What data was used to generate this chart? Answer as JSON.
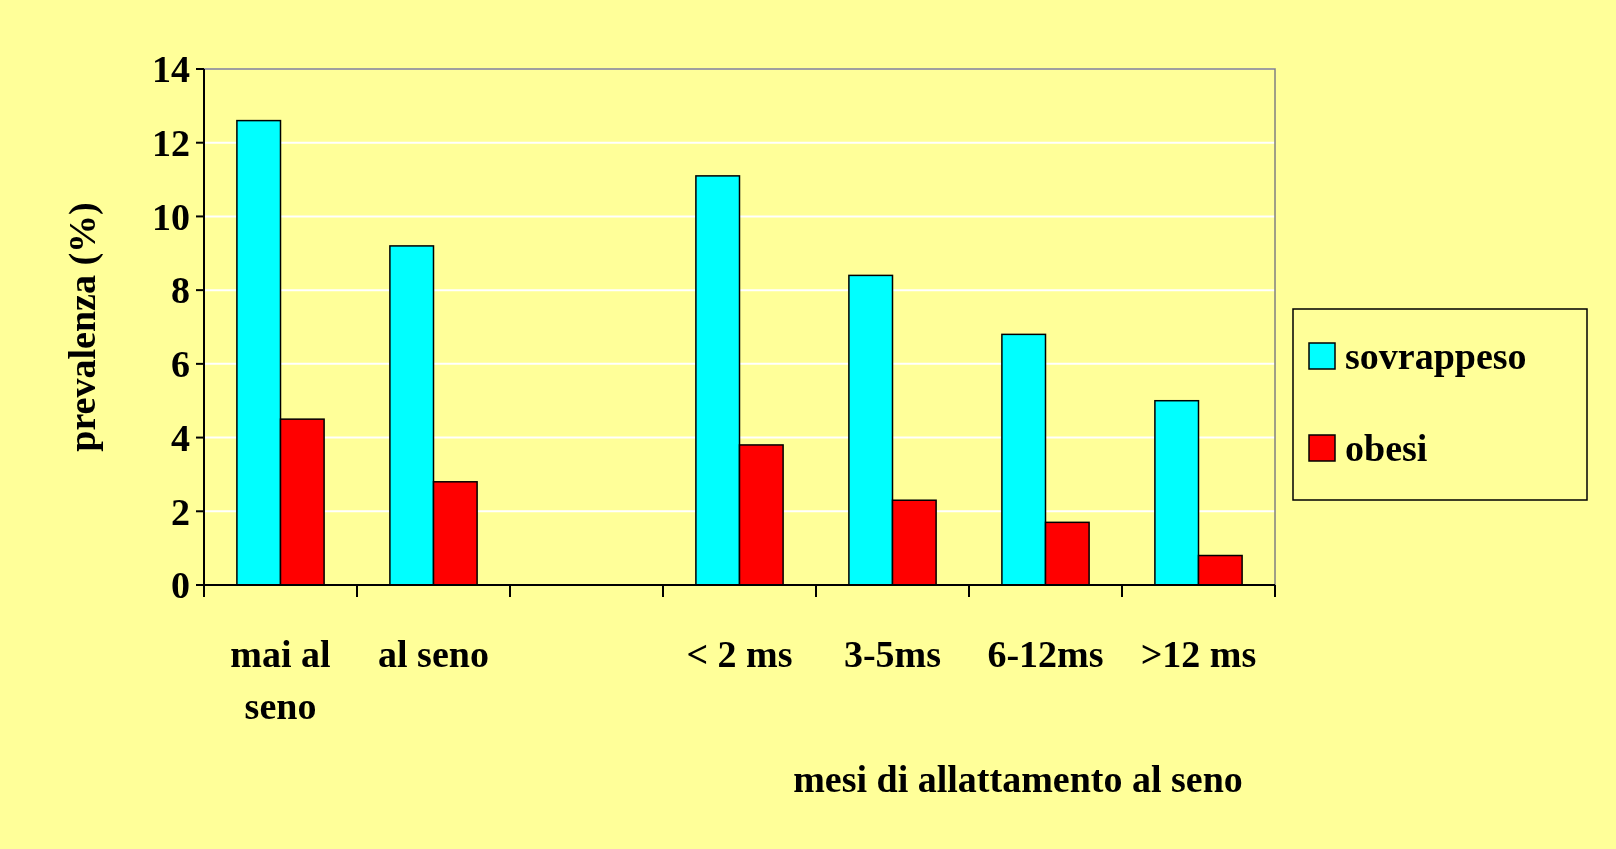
{
  "chart_data": {
    "type": "bar",
    "xlabel": "mesi di allattamento al seno",
    "ylabel": "prevalenza (%)",
    "categories": [
      "mai  al seno",
      "al seno",
      null,
      "< 2 ms",
      "3-5ms",
      "6-12ms",
      ">12 ms"
    ],
    "series": [
      {
        "name": "sovrappeso",
        "color": "#00ffff",
        "values": [
          12.6,
          9.2,
          null,
          11.1,
          8.4,
          6.8,
          5.0
        ]
      },
      {
        "name": "obesi",
        "color": "#ff0000",
        "values": [
          4.5,
          2.8,
          null,
          3.8,
          2.3,
          1.7,
          0.8
        ]
      }
    ],
    "ylim": [
      0,
      14
    ],
    "yticks": [
      0,
      2,
      4,
      6,
      8,
      10,
      12,
      14
    ],
    "grid": "y",
    "legend": "right"
  }
}
